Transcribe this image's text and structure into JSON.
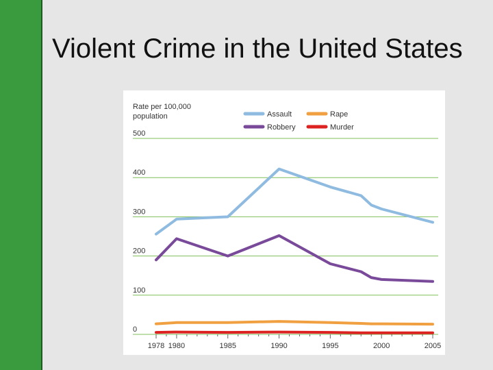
{
  "slide": {
    "title": "Violent Crime in the United States",
    "accent_color": "#3a9a3e"
  },
  "chart_data": {
    "type": "line",
    "ylabel_line1": "Rate per 100,000",
    "ylabel_line2": "population",
    "ylim": [
      0,
      500
    ],
    "yticks": [
      "500",
      "400",
      "300",
      "200",
      "100",
      "0"
    ],
    "x": [
      1978,
      1980,
      1985,
      1990,
      1995,
      1998,
      1999,
      2000,
      2005
    ],
    "xticks": [
      "1978",
      "1980",
      "1985",
      "1990",
      "1995",
      "2000",
      "2005"
    ],
    "legend_position": "top",
    "grid": true,
    "series": [
      {
        "name": "Assault",
        "color": "#8fbbe0",
        "values": [
          256,
          294,
          300,
          422,
          376,
          354,
          330,
          320,
          286
        ]
      },
      {
        "name": "Rape",
        "color": "#f0a040",
        "values": [
          27,
          30,
          30,
          33,
          30,
          28,
          27,
          27,
          26
        ]
      },
      {
        "name": "Robbery",
        "color": "#7a4a9a",
        "values": [
          190,
          244,
          200,
          252,
          180,
          160,
          145,
          140,
          135
        ]
      },
      {
        "name": "Murder",
        "color": "#dd2222",
        "values": [
          5,
          6,
          5,
          6,
          5,
          4,
          4,
          4,
          4
        ]
      }
    ]
  }
}
